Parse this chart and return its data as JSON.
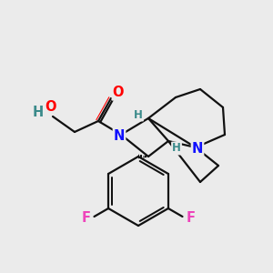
{
  "bg_color": "#ebebeb",
  "atom_colors": {
    "N": "#1010ff",
    "O": "#ff0000",
    "F": "#ee44bb",
    "H": "#3a8a8a",
    "C": "#111111"
  },
  "bond_color": "#111111",
  "lw": 1.6,
  "fs_main": 10.5,
  "fs_small": 8.5
}
